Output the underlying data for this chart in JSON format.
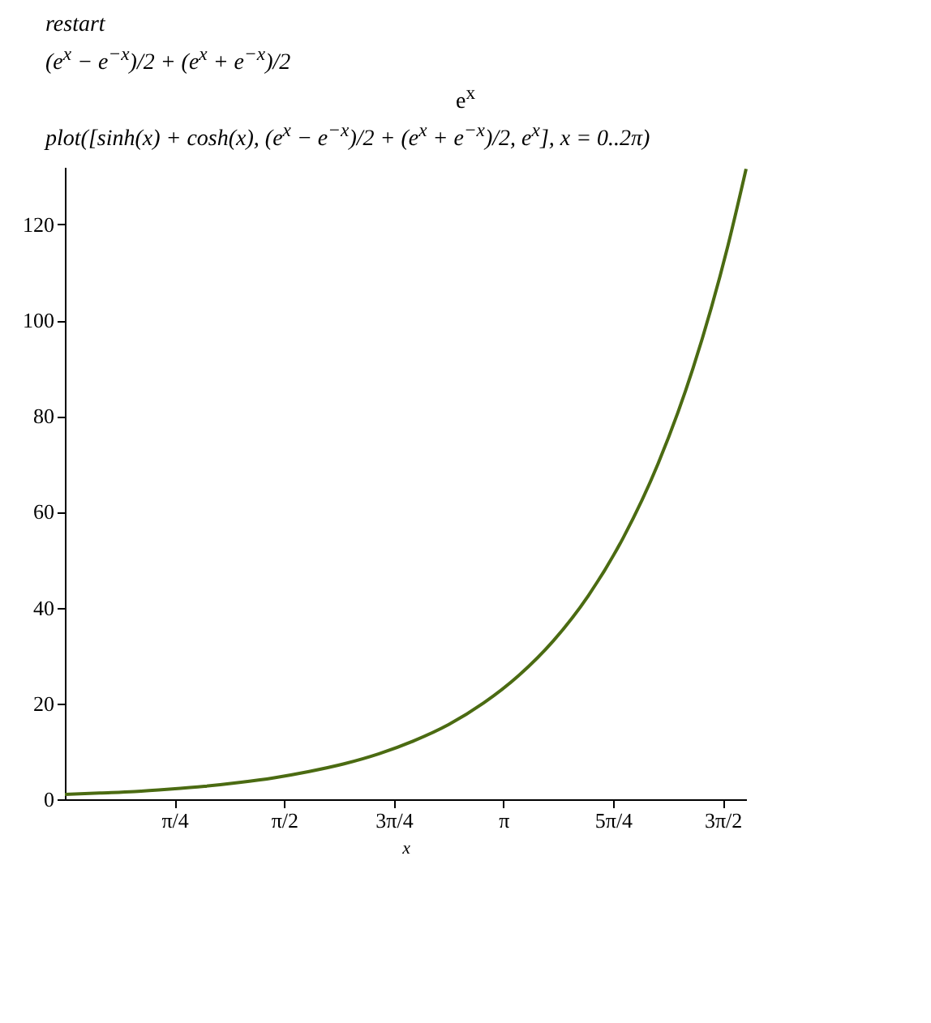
{
  "chart_data": {
    "type": "line",
    "title": "plot([sinh(x) + cosh(x), (e$^{x}$ − e$^{−x}$)/2 + (e$^{x}$ + e$^{−x}$)/2, e$^{x}$], x = 0..2π)",
    "annotations": [
      "restart",
      "(e$^{x}$ − e$^{−x}$)/2 + (e$^{x}$ + e$^{−x}$)/2",
      "e$^{x}$"
    ],
    "xlabel": "x",
    "x": [
      0,
      0.25,
      0.5,
      0.75,
      1,
      1.25,
      1.5,
      1.75,
      2,
      2.25,
      2.5,
      2.75,
      3,
      3.25,
      3.5,
      3.75,
      4,
      4.25,
      4.5,
      4.75,
      4.88
    ],
    "series": [
      {
        "color": "#4b6b12",
        "values": [
          1,
          1.3,
          1.6,
          2.1,
          2.7,
          3.5,
          4.5,
          5.8,
          7.4,
          9.5,
          12.2,
          15.6,
          20.1,
          25.8,
          33.1,
          42.5,
          54.6,
          70.1,
          90,
          115.6,
          131.6
        ]
      }
    ],
    "xlim": [
      0,
      4.88
    ],
    "ylim": [
      0,
      132
    ],
    "xticks": [
      {
        "value": 0.785,
        "label": "π/4"
      },
      {
        "value": 1.571,
        "label": "π/2"
      },
      {
        "value": 2.356,
        "label": "3π/4"
      },
      {
        "value": 3.142,
        "label": "π"
      },
      {
        "value": 3.927,
        "label": "5π/4"
      },
      {
        "value": 4.712,
        "label": "3π/2"
      }
    ],
    "yticks": [
      0,
      20,
      40,
      60,
      80,
      100,
      120
    ],
    "grid": false,
    "legend": false,
    "marker": "none",
    "line_style": "solid"
  }
}
